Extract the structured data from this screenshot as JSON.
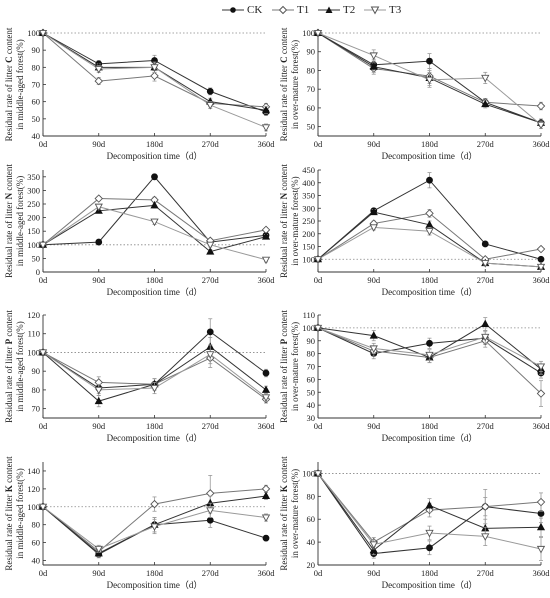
{
  "legend": {
    "items": [
      {
        "name": "CK",
        "marker": "circle-filled"
      },
      {
        "name": "T1",
        "marker": "diamond-open"
      },
      {
        "name": "T2",
        "marker": "triangle-filled"
      },
      {
        "name": "T3",
        "marker": "triangle-down-open"
      }
    ]
  },
  "chart_data": [
    {
      "type": "line",
      "ylabel": [
        "Residual rate of litter C content",
        "in middle-aged forest(%)"
      ],
      "xlabel": "Decomposition time（d）",
      "categories": [
        "0d",
        "90d",
        "180d",
        "270d",
        "360d"
      ],
      "ylim": [
        40,
        100
      ],
      "yticks": [
        40,
        50,
        60,
        70,
        80,
        90,
        100
      ],
      "reference_line": 100,
      "series": [
        {
          "name": "CK",
          "values": [
            100,
            82,
            84,
            66,
            54
          ],
          "errors": [
            0,
            2,
            3,
            2,
            2
          ]
        },
        {
          "name": "T1",
          "values": [
            100,
            72,
            75,
            59,
            57
          ],
          "errors": [
            0,
            2,
            3,
            2,
            2
          ]
        },
        {
          "name": "T2",
          "values": [
            100,
            80,
            80,
            60,
            55
          ],
          "errors": [
            0,
            2,
            3,
            2,
            2
          ]
        },
        {
          "name": "T3",
          "values": [
            100,
            79,
            80,
            58,
            45
          ],
          "errors": [
            0,
            2,
            3,
            2,
            2
          ]
        }
      ]
    },
    {
      "type": "line",
      "ylabel": [
        "Residual rate of litter C content",
        "in over-mature forest(%)"
      ],
      "xlabel": "Decomposition time（d）",
      "categories": [
        "0d",
        "90d",
        "180d",
        "270d",
        "360d"
      ],
      "ylim": [
        45,
        100
      ],
      "yticks": [
        50,
        60,
        70,
        80,
        90,
        100
      ],
      "reference_line": 100,
      "series": [
        {
          "name": "CK",
          "values": [
            100,
            83,
            85,
            63,
            52
          ],
          "errors": [
            0,
            3,
            4,
            2,
            2
          ]
        },
        {
          "name": "T1",
          "values": [
            100,
            81,
            77,
            63,
            61
          ],
          "errors": [
            0,
            3,
            4,
            2,
            2
          ]
        },
        {
          "name": "T2",
          "values": [
            100,
            82,
            76,
            62,
            52
          ],
          "errors": [
            0,
            3,
            4,
            2,
            2
          ]
        },
        {
          "name": "T3",
          "values": [
            100,
            88,
            75,
            76,
            51
          ],
          "errors": [
            0,
            3,
            4,
            3,
            2
          ]
        }
      ]
    },
    {
      "type": "line",
      "ylabel": [
        "Residual rate of litter N content",
        "in middle-aged forest(%)"
      ],
      "xlabel": "Decomposition time（d）",
      "categories": [
        "0d",
        "90d",
        "180d",
        "270d",
        "360d"
      ],
      "ylim": [
        0,
        375
      ],
      "yticks": [
        0,
        50,
        100,
        150,
        200,
        250,
        300,
        350
      ],
      "reference_line": 100,
      "series": [
        {
          "name": "CK",
          "values": [
            100,
            110,
            350,
            110,
            135
          ],
          "errors": [
            0,
            8,
            10,
            8,
            8
          ]
        },
        {
          "name": "T1",
          "values": [
            100,
            270,
            265,
            115,
            155
          ],
          "errors": [
            0,
            8,
            10,
            8,
            8
          ]
        },
        {
          "name": "T2",
          "values": [
            100,
            225,
            245,
            75,
            130
          ],
          "errors": [
            0,
            8,
            10,
            8,
            8
          ]
        },
        {
          "name": "T3",
          "values": [
            100,
            240,
            185,
            100,
            45
          ],
          "errors": [
            0,
            8,
            10,
            8,
            8
          ]
        }
      ]
    },
    {
      "type": "line",
      "ylabel": [
        "Residual rate of litter N content",
        "in over-mature forest(%)"
      ],
      "xlabel": "Decomposition time（d）",
      "categories": [
        "0d",
        "90d",
        "180d",
        "270d",
        "360d"
      ],
      "ylim": [
        50,
        450
      ],
      "yticks": [
        100,
        150,
        200,
        250,
        300,
        350,
        400,
        450
      ],
      "reference_line": 100,
      "series": [
        {
          "name": "CK",
          "values": [
            100,
            290,
            410,
            160,
            100
          ],
          "errors": [
            0,
            10,
            30,
            8,
            8
          ]
        },
        {
          "name": "T1",
          "values": [
            100,
            240,
            280,
            100,
            140
          ],
          "errors": [
            0,
            10,
            15,
            8,
            8
          ]
        },
        {
          "name": "T2",
          "values": [
            100,
            285,
            235,
            85,
            70
          ],
          "errors": [
            0,
            10,
            15,
            8,
            8
          ]
        },
        {
          "name": "T3",
          "values": [
            100,
            225,
            210,
            85,
            70
          ],
          "errors": [
            0,
            10,
            15,
            8,
            8
          ]
        }
      ]
    },
    {
      "type": "line",
      "ylabel": [
        "Residual rate of litter P content",
        "in middle-aged forest(%)"
      ],
      "xlabel": "Decomposition time（d）",
      "categories": [
        "0d",
        "90d",
        "180d",
        "270d",
        "360d"
      ],
      "ylim": [
        65,
        120
      ],
      "yticks": [
        70,
        80,
        90,
        100,
        110,
        120
      ],
      "reference_line": 100,
      "series": [
        {
          "name": "CK",
          "values": [
            100,
            81,
            83,
            111,
            89
          ],
          "errors": [
            0,
            3,
            3,
            7,
            2
          ]
        },
        {
          "name": "T1",
          "values": [
            100,
            84,
            83,
            97,
            75
          ],
          "errors": [
            0,
            3,
            3,
            5,
            2
          ]
        },
        {
          "name": "T2",
          "values": [
            100,
            74,
            83,
            103,
            80
          ],
          "errors": [
            0,
            3,
            3,
            5,
            2
          ]
        },
        {
          "name": "T3",
          "values": [
            100,
            80,
            81,
            99,
            76
          ],
          "errors": [
            0,
            3,
            3,
            5,
            2
          ]
        }
      ]
    },
    {
      "type": "line",
      "ylabel": [
        "Residual rate of litter P content",
        "in over-mature forest(%)"
      ],
      "xlabel": "Decomposition time（d）",
      "categories": [
        "0d",
        "90d",
        "180d",
        "270d",
        "360d"
      ],
      "ylim": [
        30,
        110
      ],
      "yticks": [
        30,
        40,
        50,
        60,
        70,
        80,
        90,
        100,
        110
      ],
      "reference_line": 100,
      "series": [
        {
          "name": "CK",
          "values": [
            100,
            80,
            88,
            92,
            65
          ],
          "errors": [
            0,
            4,
            4,
            5,
            4
          ]
        },
        {
          "name": "T1",
          "values": [
            100,
            82,
            77,
            90,
            49
          ],
          "errors": [
            0,
            4,
            4,
            5,
            10
          ]
        },
        {
          "name": "T2",
          "values": [
            100,
            94,
            77,
            103,
            68
          ],
          "errors": [
            0,
            4,
            4,
            5,
            4
          ]
        },
        {
          "name": "T3",
          "values": [
            100,
            84,
            79,
            93,
            70
          ],
          "errors": [
            0,
            4,
            4,
            5,
            4
          ]
        }
      ]
    },
    {
      "type": "line",
      "ylabel": [
        "Residual rate of litter K content",
        "in middle-aged forest(%)"
      ],
      "xlabel": "Decomposition time（d）",
      "categories": [
        "0d",
        "90d",
        "180d",
        "270d",
        "360d"
      ],
      "ylim": [
        35,
        150
      ],
      "yticks": [
        40,
        60,
        80,
        100,
        120,
        140
      ],
      "reference_line": 100,
      "series": [
        {
          "name": "CK",
          "values": [
            100,
            47,
            80,
            85,
            65
          ],
          "errors": [
            0,
            4,
            8,
            8,
            3
          ]
        },
        {
          "name": "T1",
          "values": [
            100,
            50,
            103,
            115,
            120
          ],
          "errors": [
            0,
            4,
            8,
            20,
            4
          ]
        },
        {
          "name": "T2",
          "values": [
            100,
            48,
            80,
            104,
            112
          ],
          "errors": [
            0,
            4,
            8,
            8,
            4
          ]
        },
        {
          "name": "T3",
          "values": [
            100,
            53,
            78,
            96,
            88
          ],
          "errors": [
            0,
            4,
            8,
            8,
            4
          ]
        }
      ]
    },
    {
      "type": "line",
      "ylabel": [
        "Residual rate of litter K content",
        "in over-mature forest(%)"
      ],
      "xlabel": "Decomposition time（d）",
      "categories": [
        "0d",
        "90d",
        "180d",
        "270d",
        "360d"
      ],
      "ylim": [
        20,
        110
      ],
      "yticks": [
        20,
        40,
        60,
        80,
        100
      ],
      "reference_line": 100,
      "series": [
        {
          "name": "CK",
          "values": [
            100,
            30,
            35,
            71,
            65
          ],
          "errors": [
            0,
            4,
            6,
            8,
            8
          ]
        },
        {
          "name": "T1",
          "values": [
            100,
            40,
            68,
            71,
            75
          ],
          "errors": [
            0,
            4,
            6,
            15,
            8
          ]
        },
        {
          "name": "T2",
          "values": [
            100,
            33,
            72,
            52,
            53
          ],
          "errors": [
            0,
            4,
            6,
            8,
            8
          ]
        },
        {
          "name": "T3",
          "values": [
            100,
            38,
            48,
            45,
            34
          ],
          "errors": [
            0,
            4,
            6,
            8,
            10
          ]
        }
      ]
    }
  ]
}
